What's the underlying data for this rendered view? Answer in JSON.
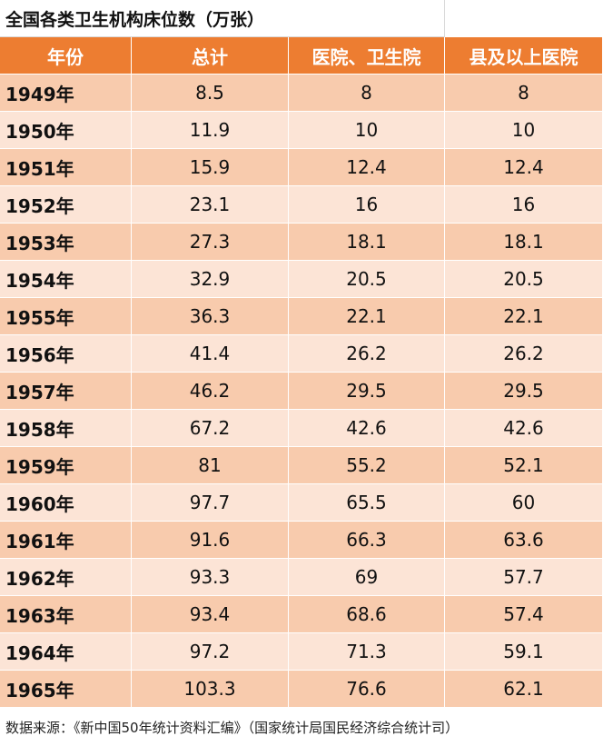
{
  "title": "全国各类卫生机构床位数（万张）",
  "table": {
    "header": [
      "年份",
      "总计",
      "医院、卫生院",
      "县及以上医院"
    ],
    "rows": [
      [
        "1949年",
        8.5,
        8,
        8
      ],
      [
        "1950年",
        11.9,
        10,
        10
      ],
      [
        "1951年",
        15.9,
        12.4,
        12.4
      ],
      [
        "1952年",
        23.1,
        16,
        16
      ],
      [
        "1953年",
        27.3,
        18.1,
        18.1
      ],
      [
        "1954年",
        32.9,
        20.5,
        20.5
      ],
      [
        "1955年",
        36.3,
        22.1,
        22.1
      ],
      [
        "1956年",
        41.4,
        26.2,
        26.2
      ],
      [
        "1957年",
        46.2,
        29.5,
        29.5
      ],
      [
        "1958年",
        67.2,
        42.6,
        42.6
      ],
      [
        "1959年",
        81,
        55.2,
        52.1
      ],
      [
        "1960年",
        97.7,
        65.5,
        60
      ],
      [
        "1961年",
        91.6,
        66.3,
        63.6
      ],
      [
        "1962年",
        93.3,
        69,
        57.7
      ],
      [
        "1963年",
        93.4,
        68.6,
        57.4
      ],
      [
        "1964年",
        97.2,
        71.3,
        59.1
      ],
      [
        "1965年",
        103.3,
        76.6,
        62.1
      ]
    ]
  },
  "source": "数据来源：《新中国50年统计资料汇编》（国家统计局国民经济综合统计司）"
}
